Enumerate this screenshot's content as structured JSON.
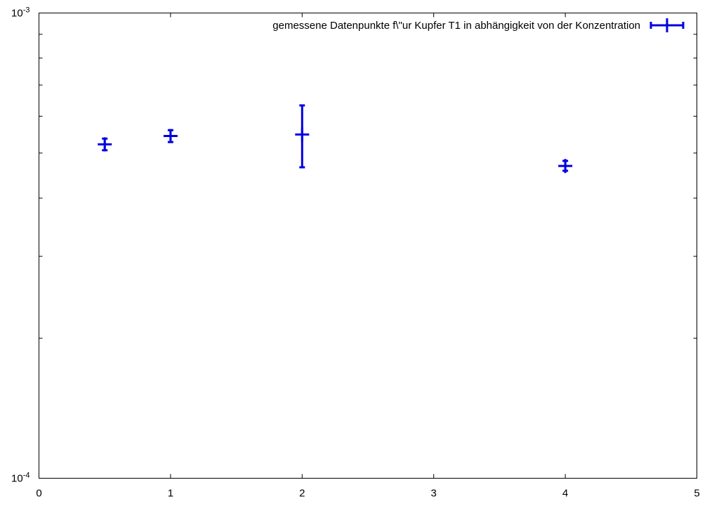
{
  "chart_data": {
    "type": "scatter",
    "x_scale": "linear",
    "y_scale": "log",
    "xlim": [
      0,
      5
    ],
    "ylim": [
      0.0001,
      0.001
    ],
    "x_ticks": [
      {
        "value": 0,
        "label": "0"
      },
      {
        "value": 1,
        "label": "1"
      },
      {
        "value": 2,
        "label": "2"
      },
      {
        "value": 3,
        "label": "3"
      },
      {
        "value": 4,
        "label": "4"
      },
      {
        "value": 5,
        "label": "5"
      }
    ],
    "y_ticks": [
      {
        "value": 0.0001,
        "base": "10",
        "exp": "-4"
      },
      {
        "value": 0.001,
        "base": "10",
        "exp": "-3"
      }
    ],
    "grid": false,
    "legend_position": "top-right",
    "series": [
      {
        "name": "gemessene Datenpunkte f\\\"ur Kupfer T1 in abhängigkeit von der Konzentration",
        "color": "#0000e0",
        "marker": "plus-with-errorbars",
        "points": [
          {
            "x": 0.5,
            "y": 0.000522,
            "ylow": 0.000507,
            "yhigh": 0.000537
          },
          {
            "x": 1.0,
            "y": 0.000544,
            "ylow": 0.000528,
            "yhigh": 0.00056
          },
          {
            "x": 2.0,
            "y": 0.000548,
            "ylow": 0.000466,
            "yhigh": 0.000633
          },
          {
            "x": 4.0,
            "y": 0.000469,
            "ylow": 0.000458,
            "yhigh": 0.000481
          }
        ]
      }
    ]
  }
}
